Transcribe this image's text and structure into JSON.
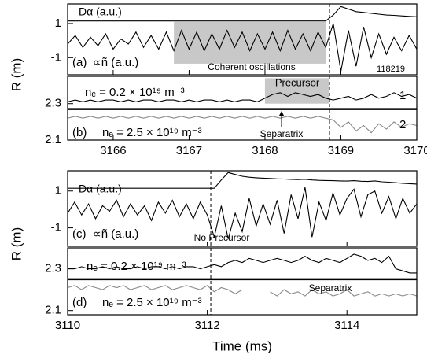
{
  "chart_data": [
    {
      "type": "line",
      "label": "(a)",
      "ylabel": "R (m)",
      "xlim": [
        3165.4,
        3170
      ],
      "xticks": [
        3166,
        3167,
        3168,
        3169,
        3170
      ],
      "ylim": [
        -2,
        2.15
      ],
      "yticks": [
        -1,
        1
      ],
      "x": [
        3165.4,
        3165.5,
        3165.6,
        3165.7,
        3165.8,
        3165.9,
        3166.0,
        3166.1,
        3166.2,
        3166.3,
        3166.4,
        3166.5,
        3166.6,
        3166.7,
        3166.8,
        3166.9,
        3167.0,
        3167.1,
        3167.2,
        3167.3,
        3167.4,
        3167.5,
        3167.6,
        3167.7,
        3167.8,
        3167.9,
        3168.0,
        3168.1,
        3168.2,
        3168.3,
        3168.4,
        3168.5,
        3168.6,
        3168.7,
        3168.8,
        3168.9,
        3169.0,
        3169.1,
        3169.2,
        3169.3,
        3169.4,
        3169.5,
        3169.6,
        3169.7,
        3169.8,
        3169.9,
        3170.0
      ],
      "series": [
        {
          "name": "Dα (a.u.)",
          "color": "#000000",
          "values": [
            1.15,
            1.15,
            1.15,
            1.15,
            1.15,
            1.15,
            1.15,
            1.15,
            1.15,
            1.15,
            1.15,
            1.15,
            1.15,
            1.15,
            1.15,
            1.15,
            1.15,
            1.15,
            1.15,
            1.15,
            1.15,
            1.15,
            1.15,
            1.15,
            1.15,
            1.15,
            1.15,
            1.15,
            1.15,
            1.15,
            1.15,
            1.15,
            1.15,
            1.15,
            1.15,
            1.5,
            2.0,
            1.85,
            1.7,
            1.65,
            1.6,
            1.55,
            1.5,
            1.48,
            1.45,
            1.42,
            1.4
          ]
        },
        {
          "name": "∝ñ (a.u.)",
          "color": "#000000",
          "values": [
            -0.2,
            0.3,
            -0.4,
            0.2,
            -0.3,
            0.4,
            -0.5,
            0.1,
            -0.2,
            0.5,
            -0.4,
            0.3,
            -0.5,
            0.5,
            -0.6,
            0.6,
            -0.5,
            0.5,
            -0.6,
            0.4,
            -0.5,
            0.6,
            -0.4,
            0.5,
            -0.6,
            0.4,
            -0.5,
            0.5,
            -0.6,
            0.6,
            -0.5,
            0.4,
            -0.6,
            0.5,
            -0.4,
            1.0,
            -1.8,
            0.6,
            -1.5,
            0.8,
            -1.0,
            0.4,
            -0.8,
            0.2,
            -0.6,
            0.3,
            -0.5
          ]
        }
      ],
      "shade": {
        "x0": 3166.8,
        "x1": 3168.8,
        "y0": -1.35,
        "y1": 1.1
      },
      "vline": 3168.85,
      "annotations": [
        "Coherent oscillations",
        "118219"
      ]
    },
    {
      "type": "line",
      "label": "(b)",
      "xlim": [
        3165.4,
        3170
      ],
      "xticks": [
        3166,
        3167,
        3168,
        3169,
        3170
      ],
      "ylim": [
        2.1,
        2.45
      ],
      "yticks": [
        2.1,
        2.3
      ],
      "x": [
        3165.4,
        3165.5,
        3165.6,
        3165.7,
        3165.8,
        3165.9,
        3166.0,
        3166.1,
        3166.2,
        3166.3,
        3166.4,
        3166.5,
        3166.6,
        3166.7,
        3166.8,
        3166.9,
        3167.0,
        3167.1,
        3167.2,
        3167.3,
        3167.4,
        3167.5,
        3167.6,
        3167.7,
        3167.8,
        3167.9,
        3168.0,
        3168.1,
        3168.2,
        3168.3,
        3168.4,
        3168.5,
        3168.6,
        3168.7,
        3168.8,
        3168.9,
        3169.0,
        3169.1,
        3169.2,
        3169.3,
        3169.4,
        3169.5,
        3169.6,
        3169.7,
        3169.8,
        3169.9,
        3170.0
      ],
      "series": [
        {
          "name": "nₑ = 0.2 × 10¹⁹ m⁻³",
          "tag": "1",
          "color": "#000000",
          "values": [
            2.31,
            2.32,
            2.31,
            2.32,
            2.31,
            2.32,
            2.32,
            2.31,
            2.32,
            2.31,
            2.32,
            2.32,
            2.31,
            2.32,
            2.32,
            2.31,
            2.32,
            2.31,
            2.32,
            2.32,
            2.31,
            2.32,
            2.31,
            2.32,
            2.32,
            2.31,
            2.33,
            2.35,
            2.36,
            2.34,
            2.36,
            2.35,
            2.34,
            2.35,
            2.33,
            2.32,
            2.33,
            2.34,
            2.32,
            2.33,
            2.35,
            2.33,
            2.34,
            2.36,
            2.34,
            2.35,
            2.33
          ]
        },
        {
          "name": "nₑ = 2.5 × 10¹⁹ m⁻³",
          "tag": "2",
          "color": "#888888",
          "values": [
            2.22,
            2.23,
            2.22,
            2.23,
            2.22,
            2.23,
            2.22,
            2.23,
            2.22,
            2.23,
            2.22,
            2.23,
            2.22,
            2.23,
            2.22,
            2.23,
            2.22,
            2.23,
            2.22,
            2.23,
            2.22,
            2.23,
            2.22,
            2.23,
            2.22,
            2.23,
            2.22,
            2.23,
            2.22,
            2.23,
            2.22,
            2.23,
            2.22,
            2.23,
            2.22,
            2.21,
            2.17,
            2.2,
            2.15,
            2.18,
            2.14,
            2.19,
            2.16,
            2.2,
            2.17,
            2.19,
            2.18
          ]
        }
      ],
      "separatrix": 2.27,
      "shade": {
        "x0": 3168.0,
        "x1": 3168.85,
        "y0": 2.3,
        "y1": 2.44
      },
      "vline": 3168.85,
      "annotations": [
        "Precursor",
        "Separatrix"
      ]
    },
    {
      "type": "line",
      "label": "(c)",
      "ylabel": "R (m)",
      "xlim": [
        3110,
        3115
      ],
      "xticks": [
        3110,
        3112,
        3114
      ],
      "ylim": [
        -2,
        2.1
      ],
      "yticks": [
        -1,
        1
      ],
      "x": [
        3110.0,
        3110.1,
        3110.2,
        3110.3,
        3110.4,
        3110.5,
        3110.6,
        3110.7,
        3110.8,
        3110.9,
        3111.0,
        3111.1,
        3111.2,
        3111.3,
        3111.4,
        3111.5,
        3111.6,
        3111.7,
        3111.8,
        3111.9,
        3112.0,
        3112.1,
        3112.2,
        3112.3,
        3112.4,
        3112.5,
        3112.6,
        3112.7,
        3112.8,
        3112.9,
        3113.0,
        3113.1,
        3113.2,
        3113.3,
        3113.4,
        3113.5,
        3113.6,
        3113.7,
        3113.8,
        3113.9,
        3114.0,
        3114.1,
        3114.2,
        3114.3,
        3114.4,
        3114.5,
        3114.6,
        3114.7,
        3114.8,
        3114.9,
        3115.0
      ],
      "series": [
        {
          "name": "Dα (a.u.)",
          "color": "#000000",
          "values": [
            1.15,
            1.15,
            1.15,
            1.15,
            1.15,
            1.15,
            1.15,
            1.15,
            1.15,
            1.15,
            1.15,
            1.15,
            1.15,
            1.15,
            1.15,
            1.15,
            1.15,
            1.15,
            1.15,
            1.15,
            1.15,
            1.15,
            1.6,
            2.0,
            1.9,
            1.8,
            1.75,
            1.72,
            1.7,
            1.68,
            1.66,
            1.65,
            1.63,
            1.62,
            1.64,
            1.6,
            1.58,
            1.57,
            1.56,
            1.55,
            1.54,
            1.56,
            1.53,
            1.52,
            1.55,
            1.5,
            1.48,
            1.45,
            1.42,
            1.4,
            1.38
          ]
        },
        {
          "name": "∝ñ (a.u.)",
          "color": "#000000",
          "values": [
            -0.2,
            0.4,
            -0.3,
            0.3,
            -0.5,
            0.2,
            -0.1,
            0.5,
            -0.4,
            0.3,
            -0.3,
            0.2,
            -0.6,
            0.4,
            -0.2,
            0.5,
            -0.4,
            0.3,
            -0.5,
            0.4,
            -0.3,
            -1.5,
            0.2,
            -1.6,
            -0.2,
            -1.2,
            0.6,
            -0.9,
            0.3,
            -0.8,
            0.5,
            -1.3,
            0.8,
            -0.5,
            1.2,
            -1.5,
            0.4,
            -0.6,
            0.9,
            -0.3,
            0.6,
            1.1,
            -0.4,
            0.8,
            1.0,
            -0.2,
            0.7,
            -0.5,
            0.6,
            -0.2,
            0.3
          ]
        }
      ],
      "vline": 3112.05,
      "annotations": [
        "No Precursor"
      ]
    },
    {
      "type": "line",
      "label": "(d)",
      "xlabel": "Time (ms)",
      "xlim": [
        3110,
        3115
      ],
      "xticks": [
        3110,
        3112,
        3114
      ],
      "ylim": [
        2.08,
        2.4
      ],
      "yticks": [
        2.1,
        2.3
      ],
      "x": [
        3110.0,
        3110.1,
        3110.2,
        3110.3,
        3110.4,
        3110.5,
        3110.6,
        3110.7,
        3110.8,
        3110.9,
        3111.0,
        3111.1,
        3111.2,
        3111.3,
        3111.4,
        3111.5,
        3111.6,
        3111.7,
        3111.8,
        3111.9,
        3112.0,
        3112.1,
        3112.2,
        3112.3,
        3112.4,
        3112.5,
        3112.6,
        3112.7,
        3112.8,
        3112.9,
        3113.0,
        3113.1,
        3113.2,
        3113.3,
        3113.4,
        3113.5,
        3113.6,
        3113.7,
        3113.8,
        3113.9,
        3114.0,
        3114.1,
        3114.2,
        3114.3,
        3114.4,
        3114.5,
        3114.6,
        3114.7,
        3114.8,
        3114.9,
        3115.0
      ],
      "series": [
        {
          "name": "nₑ = 0.2 × 10¹⁹ m⁻³",
          "color": "#000000",
          "values": [
            2.3,
            2.3,
            2.31,
            2.3,
            2.3,
            2.31,
            2.3,
            2.31,
            2.3,
            2.3,
            2.31,
            2.3,
            2.31,
            2.31,
            2.3,
            2.31,
            2.3,
            2.31,
            2.31,
            2.3,
            2.31,
            2.32,
            2.31,
            2.33,
            2.34,
            2.33,
            2.35,
            2.34,
            2.33,
            2.34,
            2.35,
            2.34,
            2.33,
            2.34,
            2.36,
            2.34,
            2.33,
            2.35,
            2.34,
            2.33,
            2.35,
            2.37,
            2.36,
            2.34,
            2.35,
            2.33,
            2.36,
            2.3,
            2.29,
            2.28,
            2.28
          ]
        },
        {
          "name": "nₑ = 2.5 × 10¹⁹ m⁻³",
          "color": "#888888",
          "values": [
            2.21,
            2.22,
            2.2,
            2.22,
            2.21,
            2.2,
            2.22,
            2.21,
            2.22,
            2.2,
            2.21,
            2.22,
            2.2,
            2.21,
            2.22,
            2.2,
            2.21,
            2.22,
            2.21,
            2.2,
            2.22,
            2.19,
            2.21,
            2.2,
            2.18,
            2.2,
            null,
            null,
            null,
            2.19,
            2.17,
            2.2,
            2.18,
            2.19,
            2.17,
            2.2,
            2.18,
            2.19,
            2.17,
            2.18,
            2.2,
            2.17,
            2.18,
            2.19,
            2.17,
            2.18,
            2.17,
            2.18,
            2.17,
            2.18,
            2.17
          ]
        }
      ],
      "separatrix": 2.25,
      "vline": 3112.05,
      "annotations": [
        "Separatrix"
      ]
    }
  ]
}
